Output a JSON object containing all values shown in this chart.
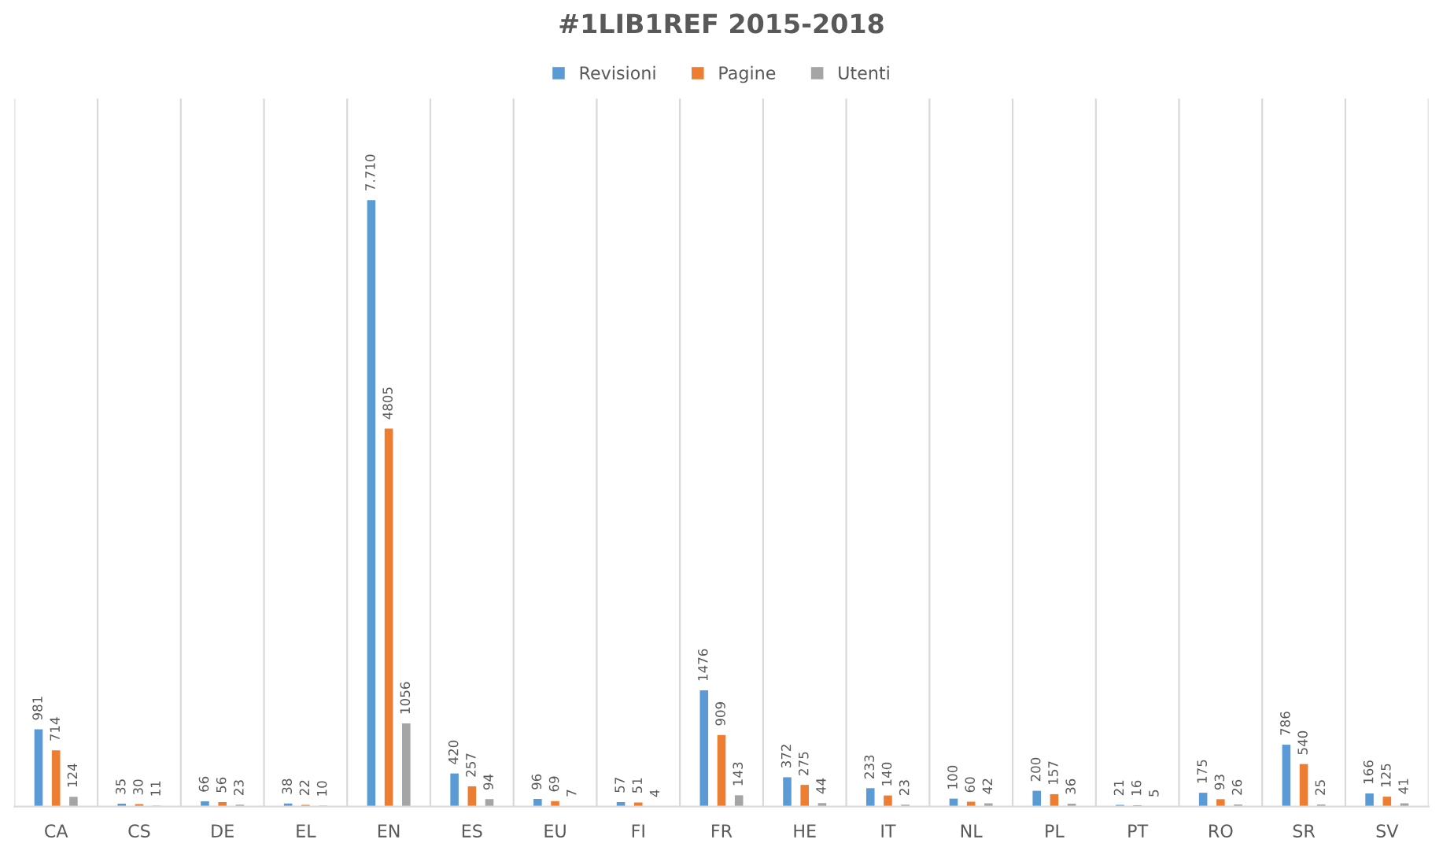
{
  "chart_data": {
    "type": "bar",
    "title": "#1LIB1REF 2015-2018",
    "categories": [
      "CA",
      "CS",
      "DE",
      "EL",
      "EN",
      "ES",
      "EU",
      "FI",
      "FR",
      "HE",
      "IT",
      "NL",
      "PL",
      "PT",
      "RO",
      "SR",
      "SV"
    ],
    "series": [
      {
        "name": "Revisioni",
        "color": "#5b9bd5",
        "values": [
          981,
          35,
          66,
          38,
          7710,
          420,
          96,
          57,
          1476,
          372,
          233,
          100,
          200,
          21,
          175,
          786,
          166
        ],
        "value_labels": [
          "981",
          "35",
          "66",
          "38",
          "7.710",
          "420",
          "96",
          "57",
          "1476",
          "372",
          "233",
          "100",
          "200",
          "21",
          "175",
          "786",
          "166"
        ]
      },
      {
        "name": "Pagine",
        "color": "#ed7d31",
        "values": [
          714,
          30,
          56,
          22,
          4805,
          257,
          69,
          51,
          909,
          275,
          140,
          60,
          157,
          16,
          93,
          540,
          125
        ],
        "value_labels": [
          "714",
          "30",
          "56",
          "22",
          "4805",
          "257",
          "69",
          "51",
          "909",
          "275",
          "140",
          "60",
          "157",
          "16",
          "93",
          "540",
          "125"
        ]
      },
      {
        "name": "Utenti",
        "color": "#a5a5a5",
        "values": [
          124,
          11,
          23,
          10,
          1056,
          94,
          7,
          4,
          143,
          44,
          23,
          42,
          36,
          5,
          26,
          25,
          41
        ],
        "value_labels": [
          "124",
          "11",
          "23",
          "10",
          "1056",
          "94",
          "7",
          "4",
          "143",
          "44",
          "23",
          "42",
          "36",
          "5",
          "26",
          "25",
          "41"
        ]
      }
    ],
    "ylim": [
      0,
      9000
    ],
    "grid": "x",
    "legend": "top"
  }
}
